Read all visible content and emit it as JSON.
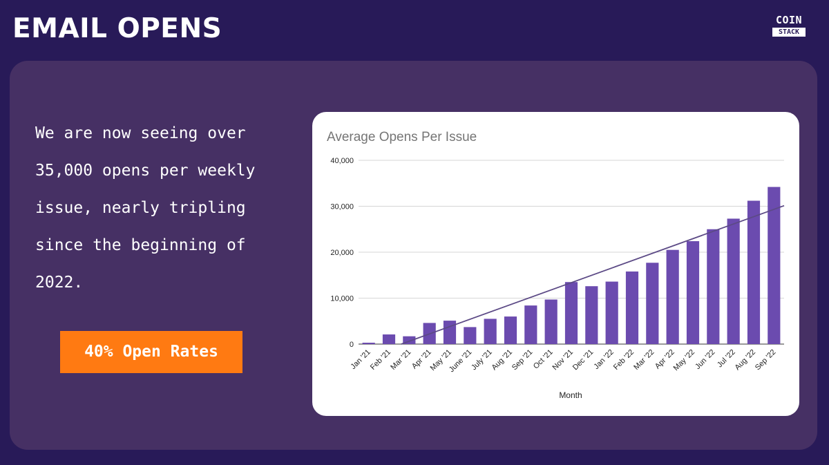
{
  "header": {
    "title": "EMAIL OPENS",
    "logo_top": "COIN",
    "logo_bottom": "STACK"
  },
  "body": {
    "lines": [
      "We are now seeing over",
      "35,000 opens per weekly",
      "issue, nearly tripling",
      "since the beginning of",
      "2022."
    ],
    "button_label": "40% Open Rates"
  },
  "colors": {
    "background": "#281a58",
    "panel": "#463064",
    "button": "#ff7a12",
    "bar": "#6b4baf",
    "trendline": "#5c4a86"
  },
  "chart_data": {
    "type": "bar",
    "title": "Average Opens Per Issue",
    "xlabel": "Month",
    "ylabel": "",
    "ylim": [
      0,
      40000
    ],
    "yticks": [
      0,
      10000,
      20000,
      30000,
      40000
    ],
    "ytick_labels": [
      "0",
      "10,000",
      "20,000",
      "30,000",
      "40,000"
    ],
    "grid": true,
    "legend": "none",
    "trendline": "linear",
    "categories": [
      "Jan '21",
      "Feb '21",
      "Mar '21",
      "Apr '21",
      "May '21",
      "June '21",
      "July '21",
      "Aug '21",
      "Sep '21",
      "Oct '21",
      "Nov '21",
      "Dec '21",
      "Jan '22",
      "Feb '22",
      "Mar '22",
      "Apr '22",
      "May '22",
      "Jun '22",
      "Jul '22",
      "Aug '22",
      "Sep '22"
    ],
    "values": [
      300,
      2100,
      1700,
      4600,
      5100,
      3700,
      5500,
      6000,
      8400,
      9700,
      13500,
      12600,
      13600,
      15800,
      17700,
      20500,
      22400,
      25000,
      27300,
      31200,
      34200
    ]
  }
}
